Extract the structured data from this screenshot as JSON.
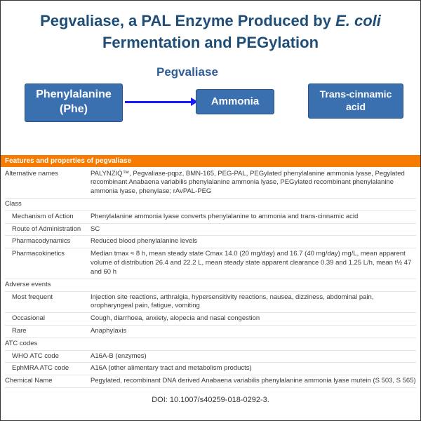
{
  "title_line1": "Pegvaliase, a PAL Enzyme Produced by ",
  "title_italic": "E. coli",
  "title_line2": "Fermentation and PEGylation",
  "flow": {
    "label": "Pegvaliase",
    "box1_l1": "Phenylalanine",
    "box1_l2": "(Phe)",
    "box2": "Ammonia",
    "box3_l1": "Trans-cinnamic",
    "box3_l2": "acid"
  },
  "table_header": "Features and properties of pegvaliase",
  "rows": {
    "altnames_k": "Alternative names",
    "altnames_v": "PALYNZIQ™, Pegvaliase-pqpz, BMN-165, PEG-PAL, PEGylated phenylalanine ammonia lyase, Pegylated recombinant Anabaena variabilis phenylalanine ammonia lyase, PEGylated recombinant phenylalanine ammonia lyase, phenylase; rAvPAL-PEG",
    "class_k": "Class",
    "moa_k": "Mechanism of Action",
    "moa_v": "Phenylalanine ammonia lyase converts phenylalanine to ammonia and trans-cinnamic acid",
    "roa_k": "Route of Administration",
    "roa_v": "SC",
    "pd_k": "Pharmacodynamics",
    "pd_v": "Reduced blood phenylalanine levels",
    "pk_k": "Pharmacokinetics",
    "pk_v": "Median tmax ≈ 8 h, mean steady state Cmax 14.0 (20 mg/day) and 16.7 (40 mg/day) mg/L, mean apparent volume of distribution 26.4 and 22.2 L, mean steady state apparent clearance 0.39 and 1.25 L/h, mean t½ 47 and 60 h",
    "ae_k": "Adverse events",
    "mf_k": "Most frequent",
    "mf_v": "Injection site reactions, arthralgia, hypersensitivity reactions, nausea, dizziness, abdominal pain, oropharyngeal pain, fatigue, vomiting",
    "occ_k": "Occasional",
    "occ_v": "Cough, diarrhoea, anxiety, alopecia and nasal congestion",
    "rare_k": "Rare",
    "rare_v": "Anaphylaxis",
    "atc_k": "ATC codes",
    "who_k": "WHO ATC code",
    "who_v": "A16A-B (enzymes)",
    "eph_k": "EphMRA ATC code",
    "eph_v": "A16A (other alimentary tract and metabolism products)",
    "chem_k": "Chemical Name",
    "chem_v": "Pegylated, recombinant DNA derived Anabaena variabilis phenylalanine ammonia lyase mutein (S 503, S 565)"
  },
  "doi": "DOI: 10.1007/s40259-018-0292-3."
}
